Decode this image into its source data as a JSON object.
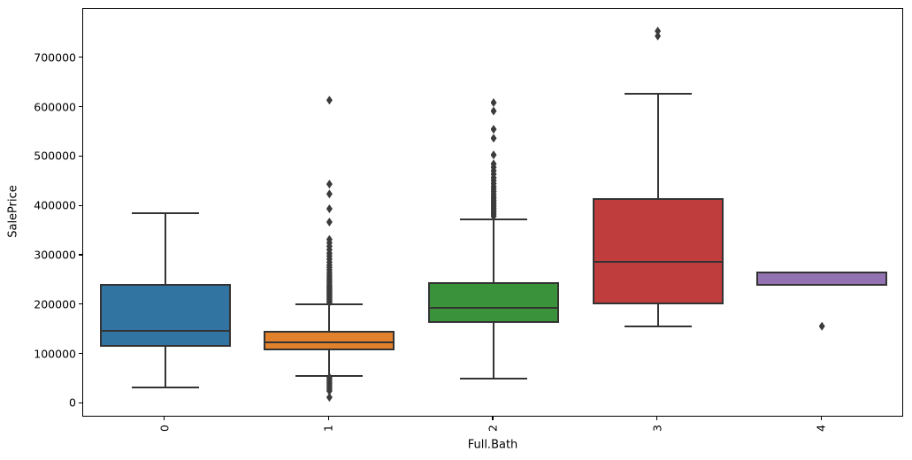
{
  "figure": {
    "background": "#ffffff"
  },
  "chart_data": {
    "type": "box",
    "title": "",
    "xlabel": "Full.Bath",
    "ylabel": "SalePrice",
    "categories": [
      "0",
      "1",
      "2",
      "3",
      "4"
    ],
    "ylim": [
      -28000,
      800000
    ],
    "yticks": [
      0,
      100000,
      200000,
      300000,
      400000,
      500000,
      600000,
      700000
    ],
    "grid": false,
    "legend": "none",
    "edge_color": "#333333",
    "flier_color": "#3b3b3b",
    "series": [
      {
        "category": "0",
        "color": "#3274a1",
        "whisker_low": 33000,
        "q1": 115000,
        "median": 147000,
        "q3": 243000,
        "whisker_high": 386000,
        "outliers": []
      },
      {
        "category": "1",
        "color": "#e1812c",
        "whisker_low": 57000,
        "q1": 109000,
        "median": 125000,
        "q3": 147000,
        "whisker_high": 201000,
        "outliers": [
          205000,
          208000,
          211000,
          214000,
          217000,
          220000,
          223000,
          226000,
          229000,
          232000,
          235000,
          238000,
          241000,
          245000,
          249000,
          253000,
          257000,
          261000,
          266000,
          271000,
          276000,
          281000,
          287000,
          293000,
          299000,
          305000,
          312000,
          319000,
          326000,
          333000,
          368000,
          395000,
          425000,
          445000,
          615000,
          54000,
          50000,
          46000,
          42000,
          38000,
          34000,
          30000,
          26000,
          13000
        ]
      },
      {
        "category": "2",
        "color": "#3a923a",
        "whisker_low": 51000,
        "q1": 163000,
        "median": 195000,
        "q3": 247000,
        "whisker_high": 374000,
        "outliers": [
          380000,
          384000,
          388000,
          392000,
          396000,
          400000,
          404000,
          408000,
          412000,
          416000,
          420000,
          425000,
          430000,
          435000,
          440000,
          446000,
          452000,
          458000,
          465000,
          472000,
          479000,
          486000,
          504000,
          538000,
          556000,
          593000,
          610000
        ]
      },
      {
        "category": "3",
        "color": "#c03d3e",
        "whisker_low": 157000,
        "q1": 202000,
        "median": 288000,
        "q3": 417000,
        "whisker_high": 628000,
        "outliers": [
          745000,
          755000
        ]
      },
      {
        "category": "4",
        "color": "#9372b2",
        "whisker_low": null,
        "q1": 239000,
        "median": null,
        "q3": 267000,
        "whisker_high": null,
        "outliers": [
          157000
        ]
      }
    ]
  }
}
